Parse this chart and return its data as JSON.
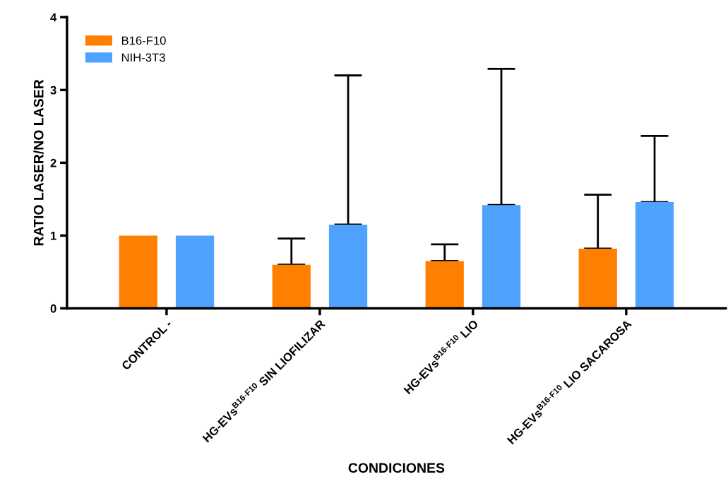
{
  "chart_data": {
    "type": "bar",
    "xlabel": "CONDICIONES",
    "ylabel": "RATIO LASER/NO LASER",
    "categories": [
      "CONTROL -",
      "HG-EVs$^{B16-F10}$ SIN LIOFILIZAR",
      "HG-EVs$^{B16-F10}$ LIO",
      "HG-EVs$^{B16-F10}$ LIO SACAROSA"
    ],
    "series": [
      {
        "name": "B16-F10",
        "color": "#ff8000",
        "values": [
          1.0,
          0.6,
          0.65,
          0.82
        ],
        "errors": [
          null,
          [
            0.6,
            0.96
          ],
          [
            0.65,
            0.88
          ],
          [
            0.82,
            1.56
          ]
        ]
      },
      {
        "name": "NIH-3T3",
        "color": "#4fa3ff",
        "values": [
          1.0,
          1.15,
          1.42,
          1.46
        ],
        "errors": [
          null,
          [
            1.15,
            3.2
          ],
          [
            1.42,
            3.29
          ],
          [
            1.46,
            2.37
          ]
        ]
      }
    ],
    "ylim": [
      0,
      4
    ],
    "yticks": [
      0,
      1,
      2,
      3,
      4
    ],
    "grid": false,
    "legend": "top left"
  }
}
